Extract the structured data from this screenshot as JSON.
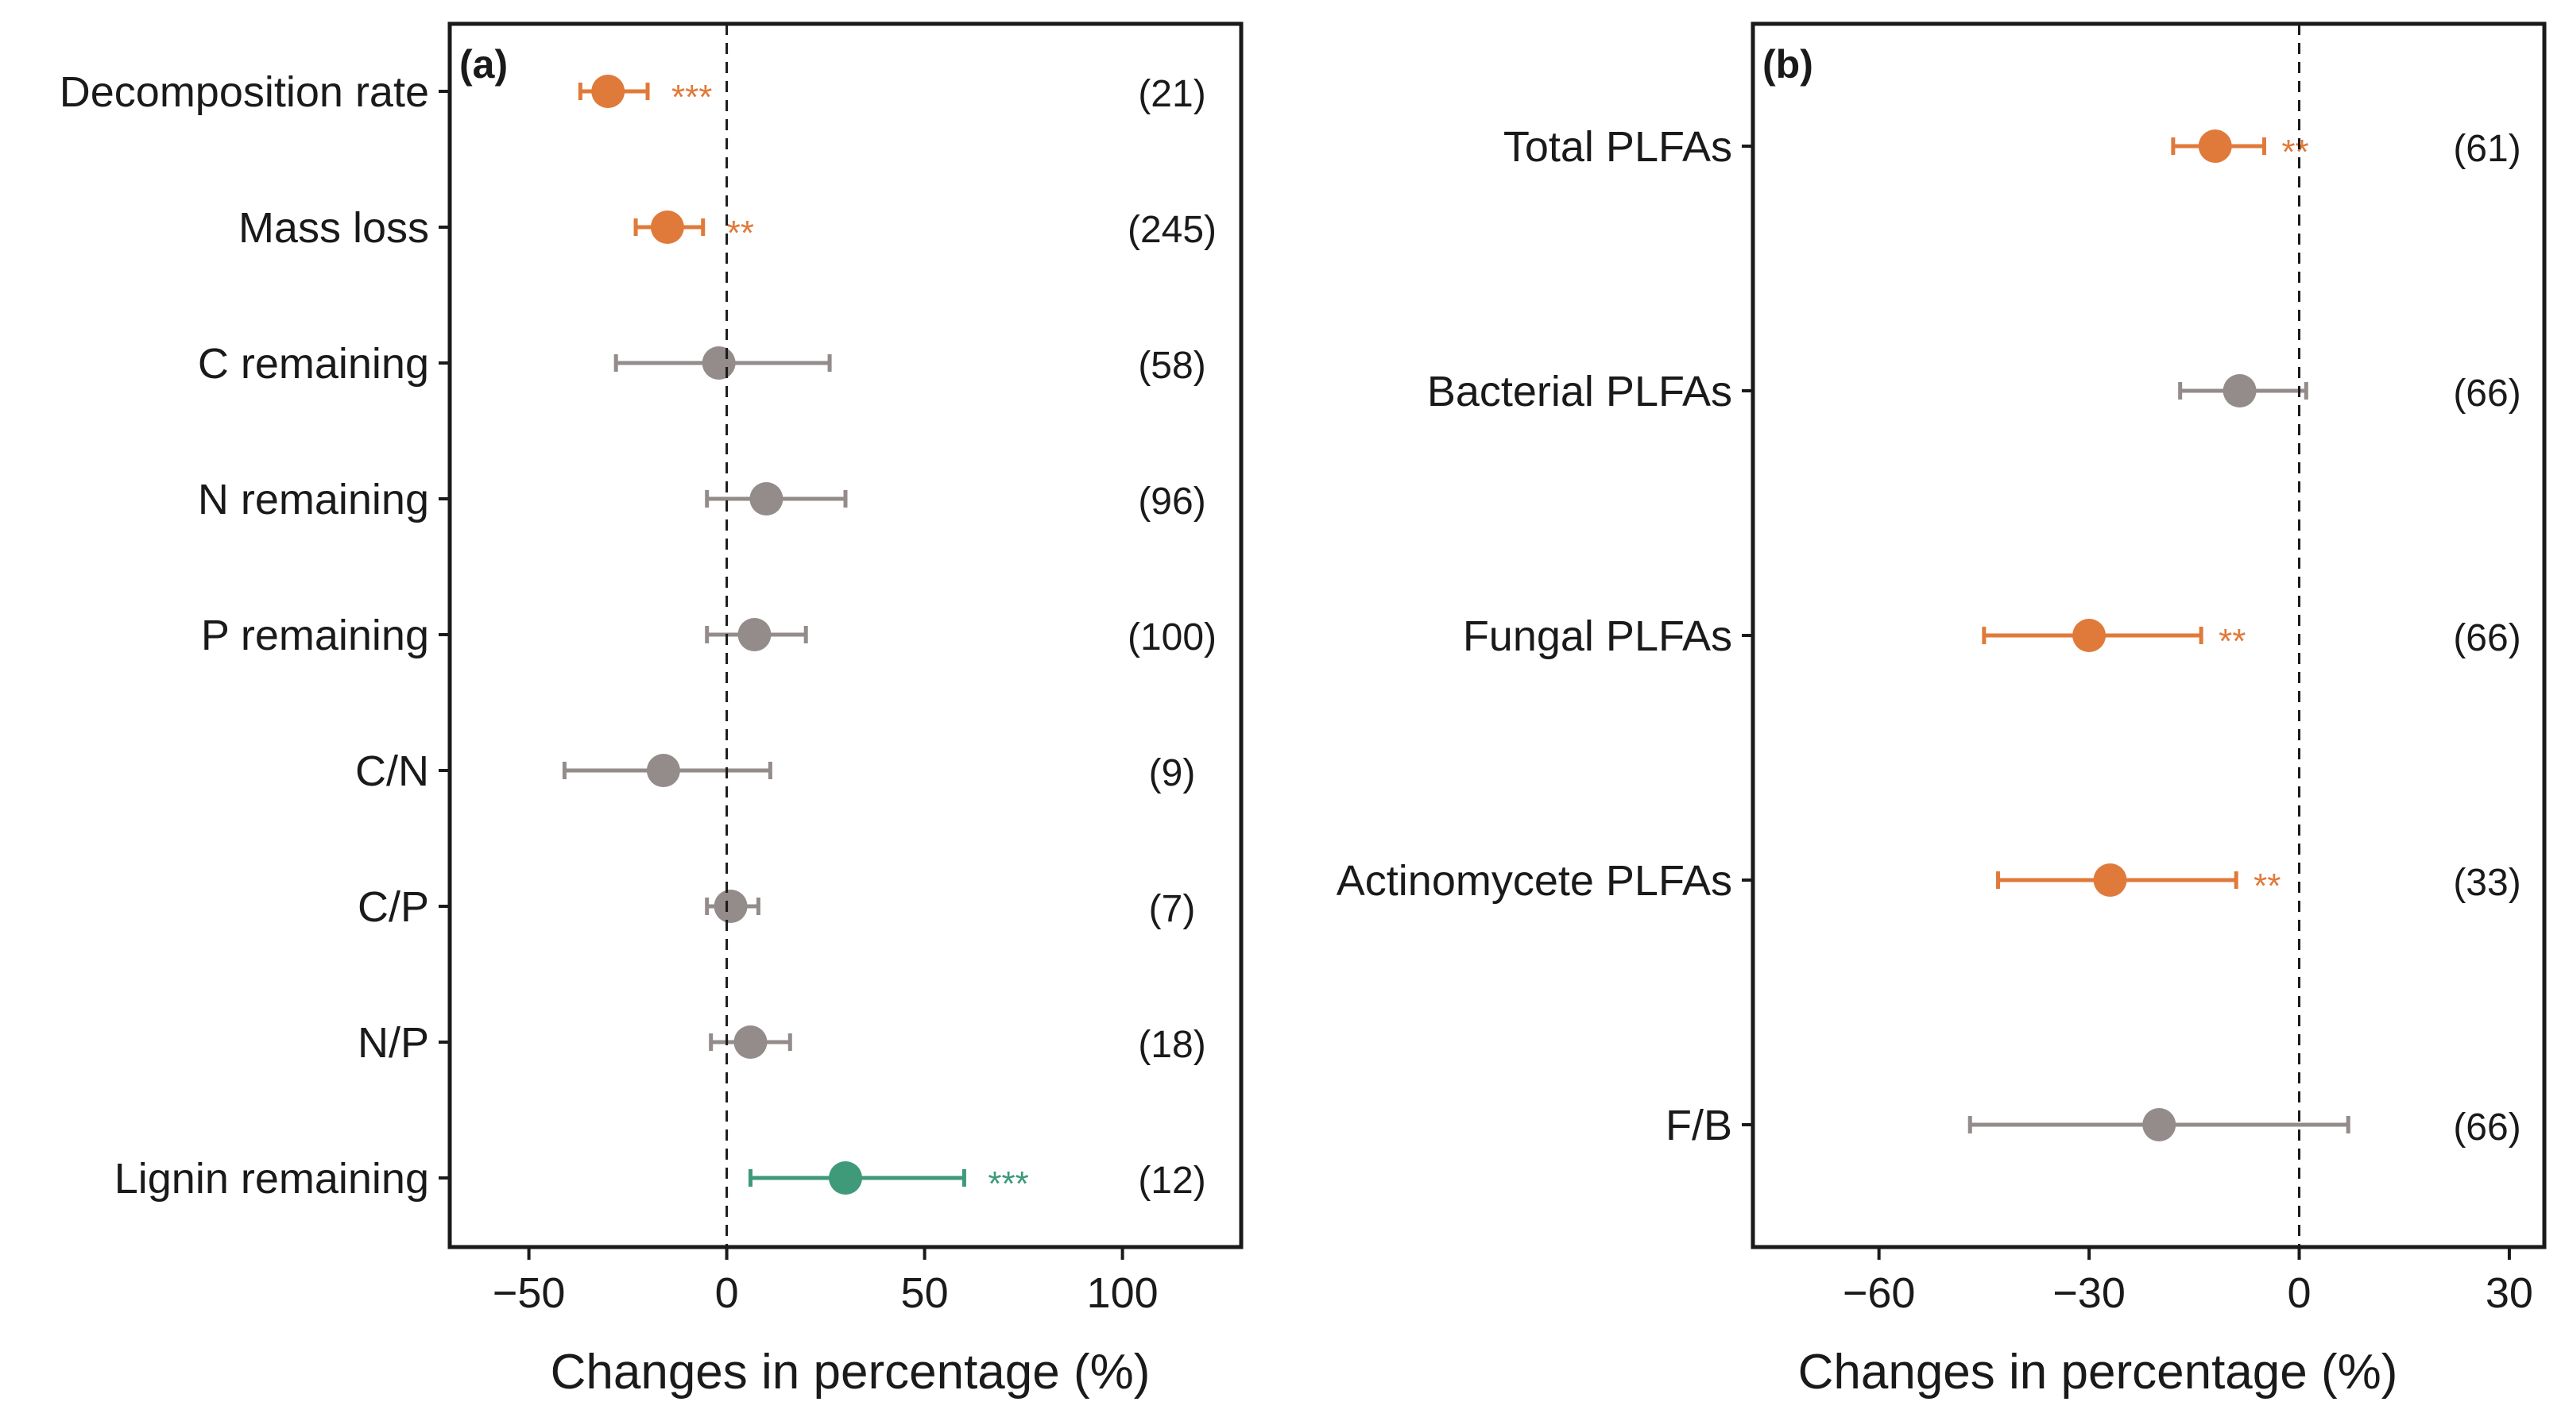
{
  "colors": {
    "orange": "#e07a3a",
    "gray": "#948b8b",
    "green": "#3e9a79",
    "axis": "#1a1a1a"
  },
  "chart_data": [
    {
      "type": "forest",
      "panel": "(a)",
      "xlabel": "Changes in percentage  (%)",
      "xlim": [
        -70,
        130
      ],
      "xticks": [
        -50,
        0,
        50,
        100
      ],
      "xtick_labels": [
        "−50",
        "0",
        "50",
        "100"
      ],
      "zero_line": "dashed",
      "rows": [
        {
          "label": "Decomposition rate",
          "mean": -30,
          "lower": -37,
          "upper": -20,
          "n": "(21)",
          "sig": "***",
          "color": "orange"
        },
        {
          "label": "Mass loss",
          "mean": -15,
          "lower": -23,
          "upper": -6,
          "n": "(245)",
          "sig": "**",
          "color": "orange"
        },
        {
          "label": "C remaining",
          "mean": -2,
          "lower": -28,
          "upper": 26,
          "n": "(58)",
          "sig": "",
          "color": "gray"
        },
        {
          "label": "N remaining",
          "mean": 10,
          "lower": -5,
          "upper": 30,
          "n": "(96)",
          "sig": "",
          "color": "gray"
        },
        {
          "label": "P remaining",
          "mean": 7,
          "lower": -5,
          "upper": 20,
          "n": "(100)",
          "sig": "",
          "color": "gray"
        },
        {
          "label": "C/N",
          "mean": -16,
          "lower": -41,
          "upper": 11,
          "n": "(9)",
          "sig": "",
          "color": "gray"
        },
        {
          "label": "C/P",
          "mean": 1,
          "lower": -5,
          "upper": 8,
          "n": "(7)",
          "sig": "",
          "color": "gray"
        },
        {
          "label": "N/P",
          "mean": 6,
          "lower": -4,
          "upper": 16,
          "n": "(18)",
          "sig": "",
          "color": "gray"
        },
        {
          "label": "Lignin remaining",
          "mean": 30,
          "lower": 6,
          "upper": 60,
          "n": "(12)",
          "sig": "***",
          "color": "green"
        }
      ]
    },
    {
      "type": "forest",
      "panel": "(b)",
      "xlabel": "Changes in percentage  (%)",
      "xlim": [
        -78,
        35
      ],
      "xticks": [
        -60,
        -30,
        0,
        30
      ],
      "xtick_labels": [
        "−60",
        "−30",
        "0",
        "30"
      ],
      "zero_line": "dashed",
      "rows": [
        {
          "label": "Total PLFAs",
          "mean": -12,
          "lower": -18,
          "upper": -5,
          "n": "(61)",
          "sig": "**",
          "color": "orange"
        },
        {
          "label": "Bacterial PLFAs",
          "mean": -8.5,
          "lower": -17,
          "upper": 1,
          "n": "(66)",
          "sig": "",
          "color": "gray"
        },
        {
          "label": "Fungal PLFAs",
          "mean": -30,
          "lower": -45,
          "upper": -14,
          "n": "(66)",
          "sig": "**",
          "color": "orange"
        },
        {
          "label": "Actinomycete PLFAs",
          "mean": -27,
          "lower": -43,
          "upper": -9,
          "n": "(33)",
          "sig": "**",
          "color": "orange"
        },
        {
          "label": "F/B",
          "mean": -20,
          "lower": -47,
          "upper": 7,
          "n": "(66)",
          "sig": "",
          "color": "gray"
        }
      ]
    }
  ]
}
